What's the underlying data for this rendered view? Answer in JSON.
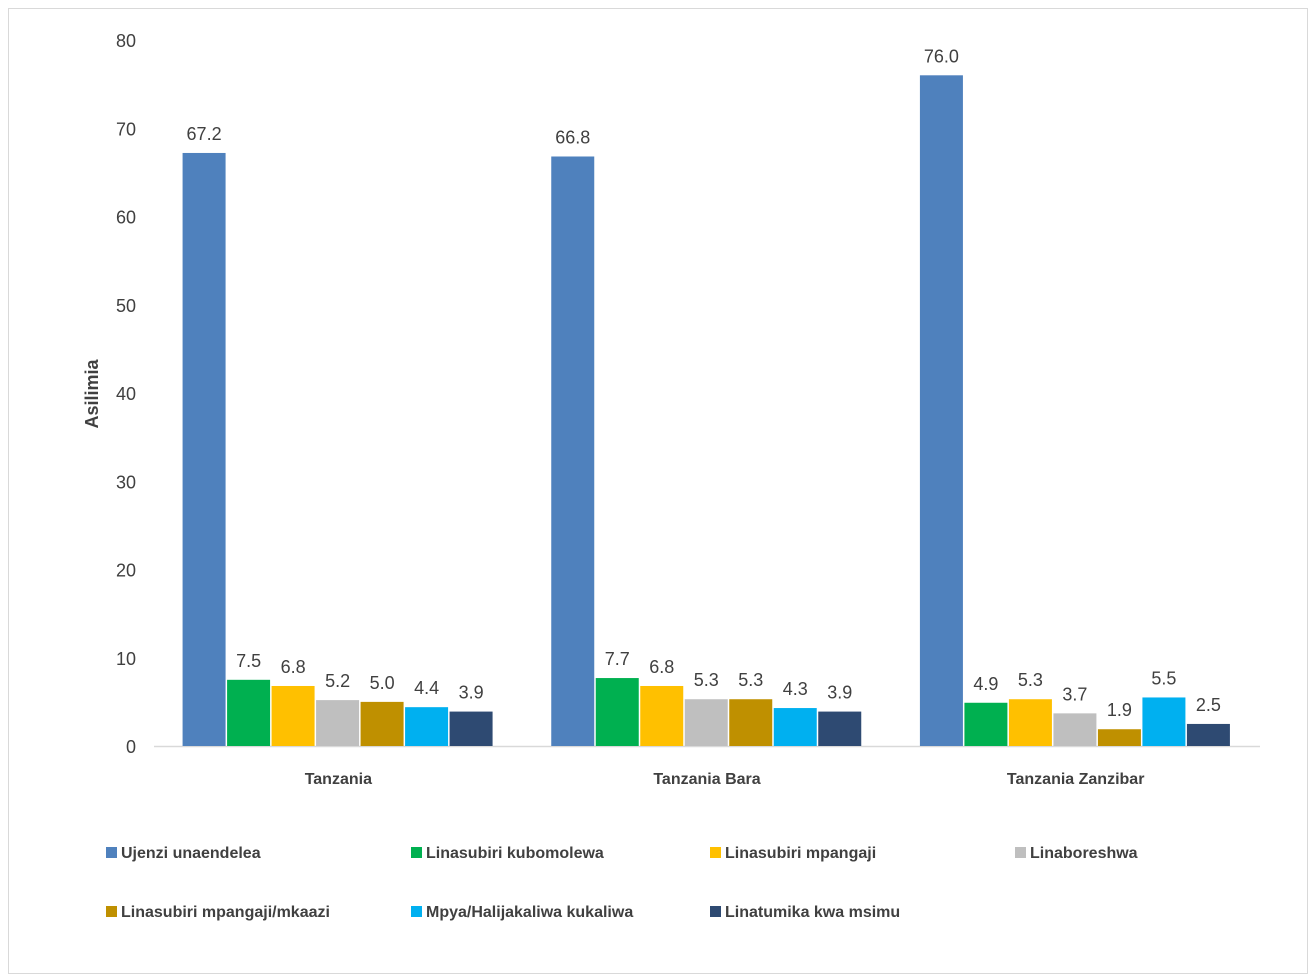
{
  "chart_data": {
    "type": "bar",
    "ylabel": "Asilimia",
    "ylim": [
      0,
      80
    ],
    "yticks": [
      "0",
      "10",
      "20",
      "30",
      "40",
      "50",
      "60",
      "70",
      "80"
    ],
    "categories": [
      "Tanzania",
      "Tanzania Bara",
      "Tanzania Zanzibar"
    ],
    "legend_position": "bottom",
    "series": [
      {
        "name": "Ujenzi unaendelea",
        "color": "#4f81bd",
        "values": [
          67.2,
          66.8,
          76.0
        ],
        "labels": [
          "67.2",
          "66.8",
          "76.0"
        ]
      },
      {
        "name": "Linasubiri kubomolewa",
        "color": "#00b050",
        "values": [
          7.5,
          7.7,
          4.9
        ],
        "labels": [
          "7.5",
          "7.7",
          "4.9"
        ]
      },
      {
        "name": "Linasubiri mpangaji",
        "color": "#ffc000",
        "values": [
          6.8,
          6.8,
          5.3
        ],
        "labels": [
          "6.8",
          "6.8",
          "5.3"
        ]
      },
      {
        "name": "Linaboreshwa",
        "color": "#bfbfbf",
        "values": [
          5.2,
          5.3,
          3.7
        ],
        "labels": [
          "5.2",
          "5.3",
          "3.7"
        ]
      },
      {
        "name": "Linasubiri mpangaji/mkaazi",
        "color": "#bf9000",
        "values": [
          5.0,
          5.3,
          1.9
        ],
        "labels": [
          "5.0",
          "5.3",
          "1.9"
        ]
      },
      {
        "name": "Mpya/Halijakaliwa kukaliwa",
        "color": "#00b0f0",
        "values": [
          4.4,
          4.3,
          5.5
        ],
        "labels": [
          "4.4",
          "4.3",
          "5.5"
        ]
      },
      {
        "name": "Linatumika kwa msimu",
        "color": "#2e4a72",
        "values": [
          3.9,
          3.9,
          2.5
        ],
        "labels": [
          "3.9",
          "3.9",
          "2.5"
        ]
      }
    ]
  }
}
